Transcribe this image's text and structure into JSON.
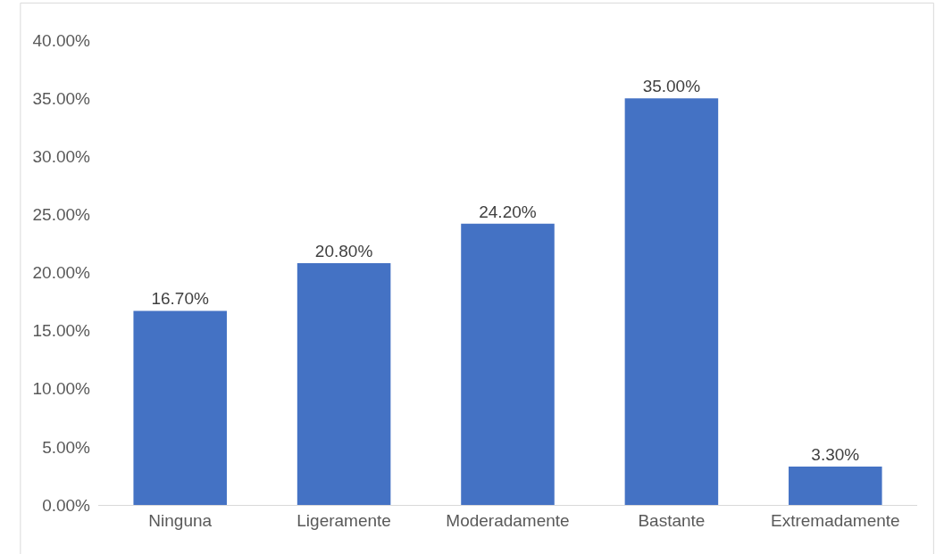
{
  "chart_data": {
    "type": "bar",
    "categories": [
      "Ninguna",
      "Ligeramente",
      "Moderadamente",
      "Bastante",
      "Extremadamente"
    ],
    "values": [
      16.7,
      20.8,
      24.2,
      35,
      3.3
    ],
    "value_labels": [
      "16.70%",
      "20.80%",
      "24.20%",
      "35.00%",
      "3.30%"
    ],
    "color": "#4472c4",
    "ylim": [
      0,
      40
    ],
    "yticks": [
      {
        "value": 0,
        "label": "0.00%"
      },
      {
        "value": 5,
        "label": "5.00%"
      },
      {
        "value": 10,
        "label": "10.00%"
      },
      {
        "value": 15,
        "label": "15.00%"
      },
      {
        "value": 20,
        "label": "20.00%"
      },
      {
        "value": 25,
        "label": "25.00%"
      },
      {
        "value": 30,
        "label": "30.00%"
      },
      {
        "value": 35,
        "label": "35.00%"
      },
      {
        "value": 40,
        "label": "40.00%"
      }
    ],
    "grid": false,
    "legend": false
  }
}
